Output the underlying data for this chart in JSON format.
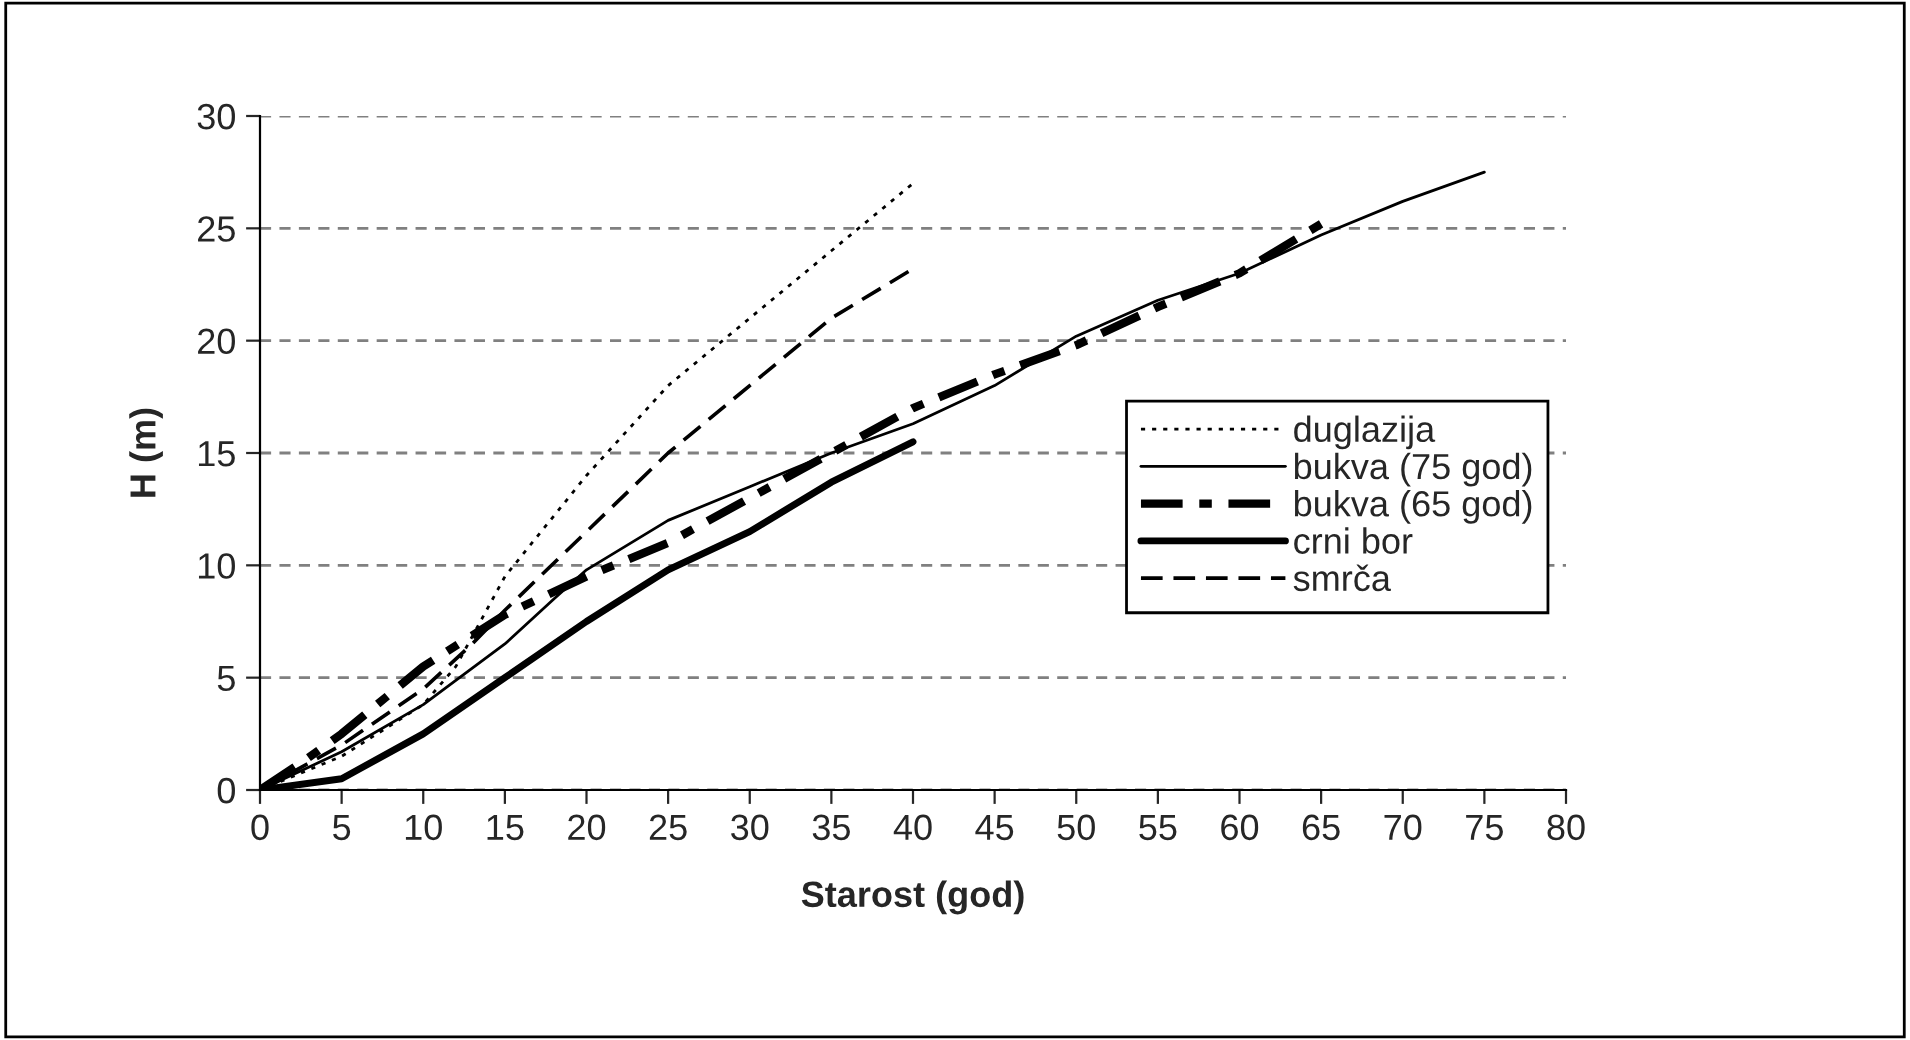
{
  "chart_data": {
    "type": "line",
    "xlabel": "Starost (god)",
    "ylabel": "H (m)",
    "xlim": [
      0,
      80
    ],
    "xticks": [
      0,
      5,
      10,
      15,
      20,
      25,
      30,
      35,
      40,
      45,
      50,
      55,
      60,
      65,
      70,
      75,
      80
    ],
    "ylim": [
      0,
      30
    ],
    "yticks": [
      0,
      5,
      10,
      15,
      20,
      25,
      30
    ],
    "grid": "y",
    "legend": "right",
    "series": [
      {
        "name": "duglazija",
        "color": "#000000",
        "line_style": "dotted",
        "x": [
          0,
          5,
          10,
          12,
          15,
          20,
          25,
          30,
          35,
          40
        ],
        "values": [
          0,
          1.5,
          3.8,
          5.5,
          9.5,
          14,
          18,
          21,
          24,
          27
        ]
      },
      {
        "name": "bukva (75 god)",
        "color": "#000000",
        "line_style": "solid",
        "x": [
          0,
          5,
          10,
          15,
          18,
          20,
          25,
          30,
          35,
          40,
          45,
          50,
          55,
          60,
          65,
          70,
          75
        ],
        "values": [
          0,
          1.7,
          3.8,
          6.5,
          8.5,
          9.8,
          12,
          13.5,
          15,
          16.3,
          18,
          20.2,
          21.8,
          23,
          24.7,
          26.2,
          27.5
        ]
      },
      {
        "name": "bukva (65 god)",
        "color": "#000000",
        "line_style": "dashdot",
        "x": [
          0,
          2.5,
          5,
          10,
          15,
          20,
          25,
          30,
          35,
          40,
          45,
          50,
          55,
          60,
          65
        ],
        "values": [
          0,
          1.2,
          2.5,
          5.5,
          7.8,
          9.5,
          11,
          13,
          15,
          17,
          18.5,
          19.8,
          21.5,
          23,
          25.2
        ]
      },
      {
        "name": "crni bor",
        "color": "#000000",
        "line_style": "solid",
        "x": [
          0,
          5,
          6,
          10,
          15,
          20,
          25,
          30,
          35,
          40
        ],
        "values": [
          0,
          0.5,
          0.9,
          2.5,
          5,
          7.5,
          9.8,
          11.5,
          13.7,
          15.5
        ]
      },
      {
        "name": "smrča",
        "color": "#000000",
        "line_style": "dashed",
        "x": [
          0,
          5,
          10,
          13,
          15,
          20,
          25,
          30,
          35,
          40
        ],
        "values": [
          0,
          2,
          4.5,
          6.5,
          8,
          11.5,
          15,
          18,
          21,
          23.2
        ]
      }
    ]
  }
}
